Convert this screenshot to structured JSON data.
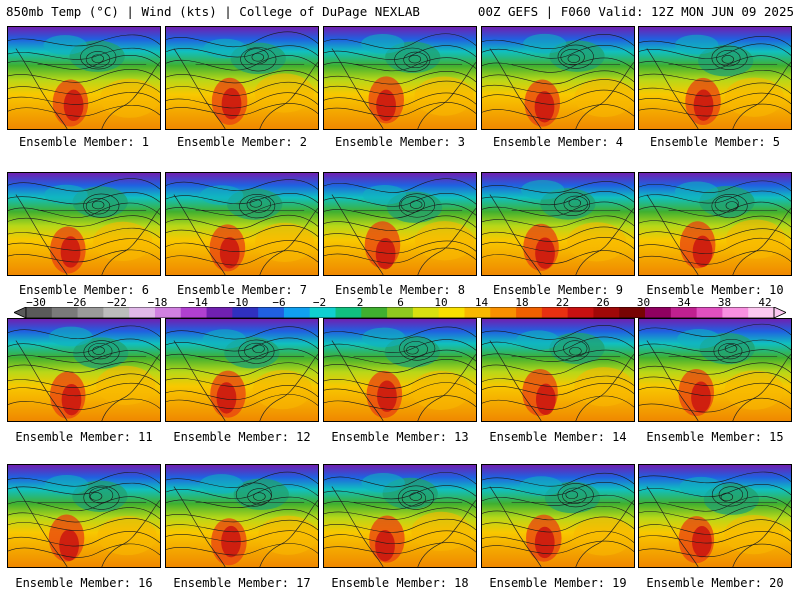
{
  "header": {
    "left": "850mb Temp (°C) | Wind (kts) | College of DuPage NEXLAB",
    "right": "00Z GEFS | F060 Valid: 12Z MON JUN 09 2025"
  },
  "panels": [
    {
      "label": "Ensemble Member: 1"
    },
    {
      "label": "Ensemble Member: 2"
    },
    {
      "label": "Ensemble Member: 3"
    },
    {
      "label": "Ensemble Member: 4"
    },
    {
      "label": "Ensemble Member: 5"
    },
    {
      "label": "Ensemble Member: 6"
    },
    {
      "label": "Ensemble Member: 7"
    },
    {
      "label": "Ensemble Member: 8"
    },
    {
      "label": "Ensemble Member: 9"
    },
    {
      "label": "Ensemble Member: 10"
    },
    {
      "label": "Ensemble Member: 11"
    },
    {
      "label": "Ensemble Member: 12"
    },
    {
      "label": "Ensemble Member: 13"
    },
    {
      "label": "Ensemble Member: 14"
    },
    {
      "label": "Ensemble Member: 15"
    },
    {
      "label": "Ensemble Member: 16"
    },
    {
      "label": "Ensemble Member: 17"
    },
    {
      "label": "Ensemble Member: 18"
    },
    {
      "label": "Ensemble Member: 19"
    },
    {
      "label": "Ensemble Member: 20"
    }
  ],
  "colorbar": {
    "ticks": [
      "−30",
      "−26",
      "−22",
      "−18",
      "−14",
      "−10",
      "−6",
      "−2",
      "2",
      "6",
      "10",
      "14",
      "18",
      "22",
      "26",
      "30",
      "34",
      "38",
      "42"
    ],
    "colors": [
      "#5a5a5a",
      "#7a7a7a",
      "#9a9a9a",
      "#bcbcbc",
      "#e0b8e8",
      "#d080e0",
      "#b040d0",
      "#7020b0",
      "#3030c0",
      "#2060e0",
      "#10a0f0",
      "#10d0d0",
      "#10c080",
      "#40b030",
      "#90c820",
      "#d8e010",
      "#f8e000",
      "#f8b800",
      "#f89000",
      "#f06000",
      "#e83010",
      "#c81010",
      "#a00808",
      "#780404",
      "#900060",
      "#c02090",
      "#e050c0",
      "#f890e0",
      "#fcc8f0"
    ]
  }
}
